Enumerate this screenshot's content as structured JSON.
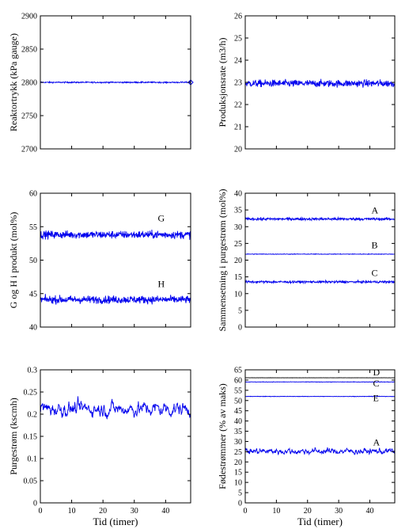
{
  "chart_data": [
    {
      "type": "line",
      "ylabel": "Reaktortrykk (kPa gauge)",
      "xlabel": "",
      "xlim": [
        0,
        48
      ],
      "ylim": [
        2700,
        2900
      ],
      "yticks": [
        "2700",
        "2750",
        "2800",
        "2850",
        "2900"
      ],
      "xticks": [],
      "grid": false,
      "series": [
        {
          "label": "",
          "mean": 2800,
          "noise": 0.8,
          "smooth": 1,
          "end_marker": true
        }
      ]
    },
    {
      "type": "line",
      "ylabel": "Produksjonsrate (m3/h)",
      "xlabel": "",
      "xlim": [
        0,
        48
      ],
      "ylim": [
        20,
        26
      ],
      "yticks": [
        "20",
        "21",
        "22",
        "23",
        "24",
        "25",
        "26"
      ],
      "xticks": [],
      "grid": false,
      "series": [
        {
          "label": "",
          "mean": 22.95,
          "noise": 0.14,
          "smooth": 1
        }
      ]
    },
    {
      "type": "line",
      "ylabel": "G og H i produkt (mol%)",
      "xlabel": "",
      "xlim": [
        0,
        48
      ],
      "ylim": [
        40,
        60
      ],
      "yticks": [
        "40",
        "45",
        "50",
        "55",
        "60"
      ],
      "xticks": [],
      "grid": false,
      "series": [
        {
          "label": "G",
          "mean": 53.8,
          "noise": 0.5,
          "smooth": 1,
          "label_x": 37.5,
          "label_y": 55.8
        },
        {
          "label": "H",
          "mean": 44.1,
          "noise": 0.5,
          "smooth": 1,
          "label_x": 37.5,
          "label_y": 46.0
        }
      ]
    },
    {
      "type": "line",
      "ylabel": "Sammensetning i purgestrøm (mol%)",
      "xlabel": "",
      "xlim": [
        0,
        48
      ],
      "ylim": [
        0,
        40
      ],
      "yticks": [
        "0",
        "5",
        "10",
        "15",
        "20",
        "25",
        "30",
        "35",
        "40"
      ],
      "xticks": [],
      "grid": false,
      "series": [
        {
          "label": "A",
          "mean": 32.3,
          "noise": 0.35,
          "smooth": 1,
          "label_x": 40.5,
          "label_y": 34.0
        },
        {
          "label": "B",
          "mean": 21.8,
          "noise": 0.08,
          "smooth": 1,
          "label_x": 40.5,
          "label_y": 23.5
        },
        {
          "label": "C",
          "mean": 13.5,
          "noise": 0.3,
          "smooth": 1,
          "label_x": 40.5,
          "label_y": 15.3
        }
      ]
    },
    {
      "type": "line",
      "ylabel": "Purgestrøm (kscmh)",
      "xlabel": "Tid (timer)",
      "xlim": [
        0,
        48
      ],
      "ylim": [
        0,
        0.3
      ],
      "yticks": [
        "0",
        "0.05",
        "0.1",
        "0.15",
        "0.2",
        "0.25",
        "0.3"
      ],
      "xticks": [
        "0",
        "10",
        "20",
        "30",
        "40"
      ],
      "grid": false,
      "series": [
        {
          "label": "",
          "mean": 0.212,
          "noise": 0.012,
          "smooth": 4
        }
      ]
    },
    {
      "type": "line",
      "ylabel": "Fødestrømmer (% av maks)",
      "xlabel": "Tid (timer)",
      "xlim": [
        0,
        48
      ],
      "ylim": [
        0,
        67
      ],
      "yticks": [
        "0",
        "5",
        "10",
        "15",
        "20",
        "25",
        "30",
        "35",
        "40",
        "45",
        "50",
        "55",
        "60",
        "65"
      ],
      "xticks": [
        "0",
        "10",
        "20",
        "30",
        "40"
      ],
      "grid": false,
      "series": [
        {
          "label": "D",
          "mean": 63.0,
          "noise": 0.04,
          "smooth": 1,
          "color": "#000000",
          "label_x": 41.0,
          "label_y": 64.3
        },
        {
          "label": "C",
          "mean": 60.9,
          "noise": 0.1,
          "smooth": 1,
          "label_x": 41.0,
          "label_y": 58.6
        },
        {
          "label": "E",
          "mean": 53.6,
          "noise": 0.1,
          "smooth": 1,
          "label_x": 41.0,
          "label_y": 51.3
        },
        {
          "label": "A",
          "mean": 26.0,
          "noise": 0.9,
          "smooth": 3,
          "label_x": 41.0,
          "label_y": 29.0
        }
      ]
    }
  ],
  "colors": {
    "series": "#0000ee",
    "axis": "#000000"
  }
}
